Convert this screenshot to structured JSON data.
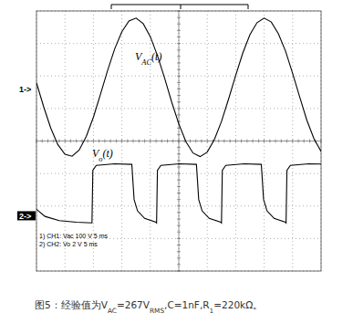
{
  "chart_data": {
    "type": "line",
    "xlim": [
      0,
      10
    ],
    "ylim": [
      0,
      8
    ],
    "xticks": [
      0,
      1,
      2,
      3,
      4,
      5,
      6,
      7,
      8,
      9,
      10
    ],
    "yticks": [
      0,
      1,
      2,
      3,
      4,
      5,
      6,
      7,
      8
    ],
    "grid": true,
    "tick_labels": false,
    "series": [
      {
        "color": "#000000",
        "line_style": "solid",
        "x": [
          0,
          0.25,
          0.5,
          0.75,
          1,
          1.25,
          1.5,
          1.75,
          2,
          2.25,
          2.5,
          2.75,
          3,
          3.25,
          3.5,
          3.75,
          4,
          4.25,
          4.5,
          4.75,
          5,
          5.25,
          5.5,
          5.75,
          6,
          6.25,
          6.5,
          6.75,
          7,
          7.25,
          7.5,
          7.75,
          8,
          8.25,
          8.5,
          8.75,
          9,
          9.25,
          9.5,
          9.75,
          10
        ],
        "values": [
          5.79,
          5.06,
          4.4,
          3.89,
          3.59,
          3.53,
          3.72,
          4.14,
          4.73,
          5.44,
          6.17,
          6.84,
          7.36,
          7.69,
          7.78,
          7.61,
          7.21,
          6.63,
          5.94,
          5.2,
          4.53,
          3.98,
          3.63,
          3.52,
          3.66,
          4.04,
          4.6,
          5.29,
          6.02,
          6.71,
          7.27,
          7.64,
          7.78,
          7.66,
          7.3,
          6.77,
          6.08,
          5.35,
          4.64,
          4.07,
          3.68
        ]
      },
      {
        "color": "#000000",
        "line_style": "solid",
        "x": [
          0,
          0.3,
          0.8,
          1.4,
          1.95,
          1.98,
          2.1,
          2.75,
          3.35,
          3.43,
          3.55,
          3.8,
          4.2,
          4.22,
          4.25,
          4.37,
          5.02,
          5.62,
          5.7,
          5.82,
          6.07,
          6.48,
          6.5,
          6.53,
          6.65,
          7.3,
          7.9,
          7.98,
          8.1,
          8.35,
          8.75,
          8.77,
          8.8,
          8.92,
          9.57,
          10
        ],
        "values": [
          1.9,
          1.68,
          1.55,
          1.5,
          1.48,
          3.1,
          3.25,
          3.3,
          3.28,
          2.2,
          1.85,
          1.62,
          1.5,
          1.48,
          3.1,
          3.25,
          3.3,
          3.28,
          2.2,
          1.85,
          1.62,
          1.5,
          1.48,
          3.1,
          3.25,
          3.3,
          3.28,
          2.2,
          1.85,
          1.62,
          1.5,
          1.48,
          3.1,
          3.25,
          3.3,
          3.29
        ]
      }
    ],
    "annotations": [
      {
        "parts": [
          {
            "text": "V"
          },
          {
            "text": "AC",
            "sub": true
          },
          {
            "text": "(t)"
          }
        ]
      },
      {
        "parts": [
          {
            "text": "V"
          },
          {
            "text": "o",
            "sub": true
          },
          {
            "text": "(t)"
          }
        ]
      }
    ],
    "channel_markers": [
      {
        "label": "1->",
        "level": 5.6
      },
      {
        "label": "2->",
        "level": 1.7
      }
    ],
    "channel_info": [
      "1) CH1: Vac 100 V 5 ms",
      "2) CH2: Vo 2 V 5 ms"
    ],
    "caption": {
      "parts": [
        {
          "text": "图5：经验值为V"
        },
        {
          "text": "AC",
          "sub": true
        },
        {
          "text": "=267V"
        },
        {
          "text": "RMS",
          "sub": true
        },
        {
          "text": ",C=1nF,R"
        },
        {
          "text": "1",
          "sub": true
        },
        {
          "text": "=220kΩ。"
        }
      ]
    }
  }
}
